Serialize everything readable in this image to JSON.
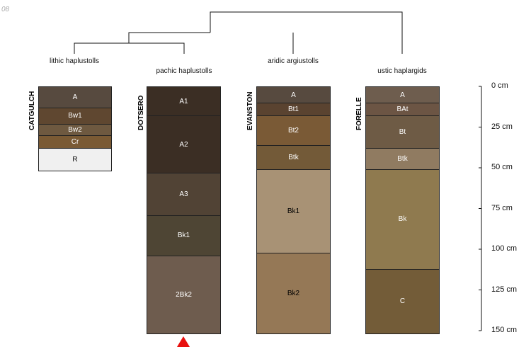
{
  "stamp": "08",
  "depth_axis": {
    "max": 150,
    "ticks": [
      "0 cm",
      "25 cm",
      "50 cm",
      "75 cm",
      "100 cm",
      "125 cm",
      "150 cm"
    ]
  },
  "taxonomy_labels": [
    "lithic haplustolls",
    "pachic haplustolls",
    "aridic argiustolls",
    "ustic haplargids"
  ],
  "profiles": [
    {
      "name": "CATGULCH",
      "horizons": [
        {
          "label": "A",
          "top": 0,
          "bottom": 13,
          "color": "#574a3f",
          "text": "#ffffff"
        },
        {
          "label": "Bw1",
          "top": 13,
          "bottom": 23,
          "color": "#5f4730",
          "text": "#ffffff"
        },
        {
          "label": "Bw2",
          "top": 23,
          "bottom": 30,
          "color": "#6e5940",
          "text": "#ffffff"
        },
        {
          "label": "Cr",
          "top": 30,
          "bottom": 38,
          "color": "#7a5a34",
          "text": "#ffffff"
        },
        {
          "label": "R",
          "top": 38,
          "bottom": 52,
          "color": "#f0f0f0",
          "text": "#000000"
        }
      ]
    },
    {
      "name": "DOTSERO",
      "marker": true,
      "horizons": [
        {
          "label": "A1",
          "top": 0,
          "bottom": 18,
          "color": "#3b2e24",
          "text": "#ffffff"
        },
        {
          "label": "A2",
          "top": 18,
          "bottom": 53,
          "color": "#3b2e24",
          "text": "#ffffff"
        },
        {
          "label": "A3",
          "top": 53,
          "bottom": 79,
          "color": "#514335",
          "text": "#ffffff"
        },
        {
          "label": "Bk1",
          "top": 79,
          "bottom": 104,
          "color": "#4e4534",
          "text": "#ffffff"
        },
        {
          "label": "2Bk2",
          "top": 104,
          "bottom": 152,
          "color": "#6e5c4e",
          "text": "#ffffff"
        }
      ]
    },
    {
      "name": "EVANSTON",
      "horizons": [
        {
          "label": "A",
          "top": 0,
          "bottom": 10,
          "color": "#574a3f",
          "text": "#ffffff"
        },
        {
          "label": "Bt1",
          "top": 10,
          "bottom": 18,
          "color": "#5a4330",
          "text": "#ffffff"
        },
        {
          "label": "Bt2",
          "top": 18,
          "bottom": 36,
          "color": "#7a5a36",
          "text": "#ffffff"
        },
        {
          "label": "Btk",
          "top": 36,
          "bottom": 51,
          "color": "#735a38",
          "text": "#ffffff"
        },
        {
          "label": "Bk1",
          "top": 51,
          "bottom": 102,
          "color": "#a89275",
          "text": "#000000"
        },
        {
          "label": "Bk2",
          "top": 102,
          "bottom": 152,
          "color": "#957856",
          "text": "#000000"
        }
      ]
    },
    {
      "name": "FORELLE",
      "horizons": [
        {
          "label": "A",
          "top": 0,
          "bottom": 10,
          "color": "#6e5d4e",
          "text": "#ffffff"
        },
        {
          "label": "BAt",
          "top": 10,
          "bottom": 18,
          "color": "#6c5544",
          "text": "#ffffff"
        },
        {
          "label": "Bt",
          "top": 18,
          "bottom": 38,
          "color": "#6e5b45",
          "text": "#ffffff"
        },
        {
          "label": "Btk",
          "top": 38,
          "bottom": 51,
          "color": "#907b61",
          "text": "#ffffff"
        },
        {
          "label": "Bk",
          "top": 51,
          "bottom": 112,
          "color": "#8f7a4f",
          "text": "#ffffff"
        },
        {
          "label": "C",
          "top": 112,
          "bottom": 152,
          "color": "#735c38",
          "text": "#ffffff"
        }
      ]
    }
  ]
}
